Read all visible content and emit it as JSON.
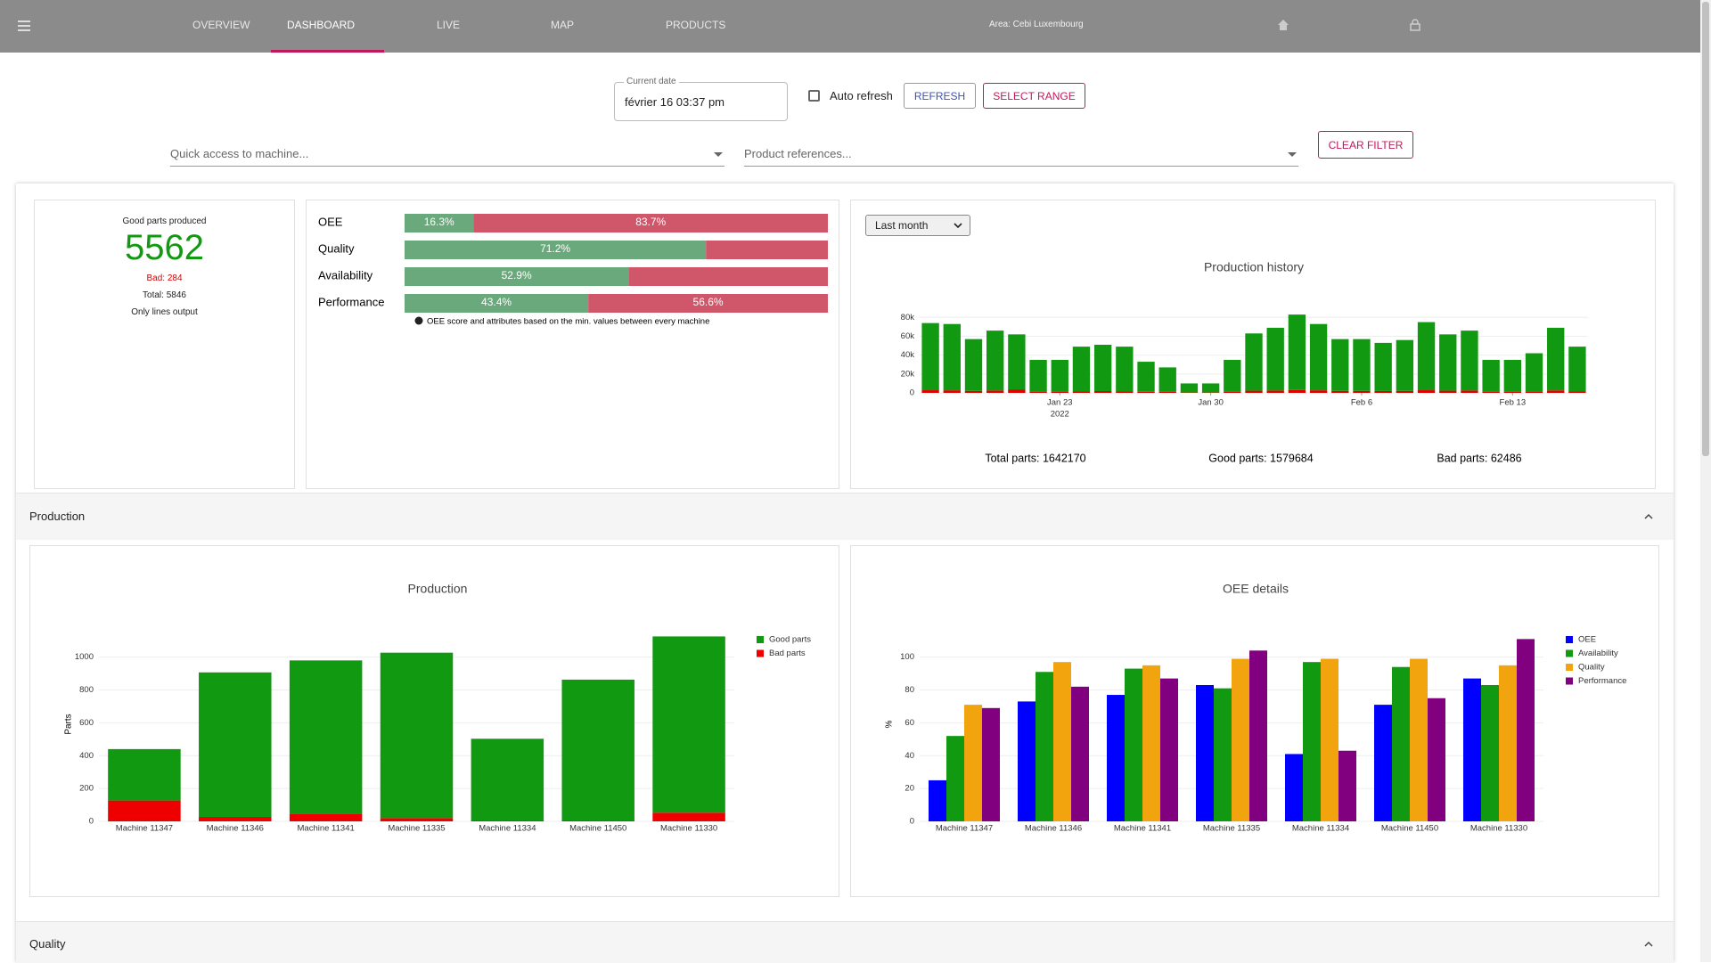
{
  "nav": {
    "items": [
      "OVERVIEW",
      "DASHBOARD",
      "LIVE",
      "MAP",
      "PRODUCTS"
    ],
    "area": "Area: Cebi Luxembourg"
  },
  "controls": {
    "date_label": "Current date",
    "date_value": "février 16 03:37 pm",
    "auto_refresh": "Auto refresh",
    "refresh": "REFRESH",
    "select_range": "SELECT RANGE",
    "machine_placeholder": "Quick access to machine...",
    "product_placeholder": "Product references...",
    "clear_filter": "CLEAR FILTER"
  },
  "kpi": {
    "title": "Good parts produced",
    "good": "5562",
    "bad": "Bad: 284",
    "total": "Total: 5846",
    "note": "Only lines output"
  },
  "oee_summary": {
    "good_color": "#6aa97b",
    "bad_color": "#d0566a",
    "note": "OEE score and attributes based on the min. values between every machine",
    "rows": [
      {
        "name": "OEE",
        "good": 16.3,
        "bad": 83.7,
        "good_label": "16.3%",
        "bad_label": "83.7%"
      },
      {
        "name": "Quality",
        "good": 71.2,
        "bad": 28.8,
        "good_label": "71.2%"
      },
      {
        "name": "Availability",
        "good": 52.9,
        "bad": 47.1,
        "good_label": "52.9%"
      },
      {
        "name": "Performance",
        "good": 43.4,
        "bad": 56.6,
        "good_label": "43.4%",
        "bad_label": "56.6%"
      }
    ]
  },
  "history": {
    "type": "bar",
    "barmode": "stack",
    "range_select": "Last month",
    "title": "Production history",
    "x": [
      "2022-01-17",
      "2022-01-18",
      "2022-01-19",
      "2022-01-20",
      "2022-01-21",
      "2022-01-22",
      "2022-01-23",
      "2022-01-24",
      "2022-01-25",
      "2022-01-26",
      "2022-01-27",
      "2022-01-28",
      "2022-01-29",
      "2022-01-30",
      "2022-01-31",
      "2022-02-01",
      "2022-02-02",
      "2022-02-03",
      "2022-02-04",
      "2022-02-05",
      "2022-02-06",
      "2022-02-07",
      "2022-02-08",
      "2022-02-09",
      "2022-02-10",
      "2022-02-11",
      "2022-02-12",
      "2022-02-13",
      "2022-02-14",
      "2022-02-15",
      "2022-02-16"
    ],
    "series": [
      {
        "color": "#e00000",
        "values": [
          2800,
          2700,
          2100,
          2500,
          3300,
          1300,
          1300,
          1800,
          1900,
          1800,
          1200,
          1000,
          400,
          400,
          1300,
          2300,
          2500,
          3000,
          2700,
          2100,
          2100,
          2000,
          2100,
          2800,
          2300,
          2500,
          1300,
          1300,
          1600,
          2600,
          1800
        ]
      },
      {
        "color": "#119a11",
        "values": [
          71200,
          70300,
          54900,
          63500,
          58700,
          33700,
          33700,
          47200,
          49100,
          47200,
          31800,
          26000,
          9600,
          9600,
          33700,
          60700,
          66500,
          80000,
          70300,
          54900,
          54900,
          51000,
          53900,
          72200,
          59700,
          63500,
          33700,
          33700,
          40400,
          66400,
          47200
        ]
      }
    ],
    "xlim": [
      "2022-01-16T12:00",
      "2022-02-16T12:00"
    ],
    "xticks": [
      {
        "value": "2022-01-23",
        "label": "Jan 23"
      },
      {
        "value": "2022-01-30",
        "label": "Jan 30"
      },
      {
        "value": "2022-02-06",
        "label": "Feb 6"
      },
      {
        "value": "2022-02-13",
        "label": "Feb 13"
      }
    ],
    "x_year": "2022",
    "ylim": [
      0,
      85000
    ],
    "yticks": [
      0,
      {
        "value": 20000,
        "label": "20k"
      },
      {
        "value": 40000,
        "label": "40k"
      },
      {
        "value": 60000,
        "label": "60k"
      },
      {
        "value": 80000,
        "label": "80k"
      }
    ],
    "grid": true,
    "totals": [
      "Total parts: 1642170",
      "Good parts: 1579684",
      "Bad parts: 62486"
    ]
  },
  "sections": [
    "Production",
    "Quality"
  ],
  "production_chart": {
    "type": "bar",
    "barmode": "stack",
    "title": "Production",
    "y_label": "Parts",
    "legend": "top-right",
    "legend_order": "reversed",
    "categories": [
      "Machine 11347",
      "Machine 11346",
      "Machine 11341",
      "Machine 11335",
      "Machine 11334",
      "Machine 11450",
      "Machine 11330"
    ],
    "series": [
      {
        "name": "Bad parts",
        "color": "#ee0000",
        "values": [
          127,
          27,
          47,
          20,
          5,
          5,
          53
        ]
      },
      {
        "name": "Good parts",
        "color": "#119a11",
        "values": [
          313,
          880,
          933,
          1007,
          498,
          858,
          1073
        ]
      }
    ],
    "ylim": [
      0,
      1150
    ],
    "yticks": [
      0,
      200,
      400,
      600,
      800,
      1000
    ],
    "grid": true
  },
  "oee_chart": {
    "type": "bar",
    "barmode": "group",
    "title": "OEE details",
    "y_label": "%",
    "legend": "top-right",
    "categories": [
      "Machine 11347",
      "Machine 11346",
      "Machine 11341",
      "Machine 11335",
      "Machine 11334",
      "Machine 11450",
      "Machine 11330"
    ],
    "series": [
      {
        "name": "OEE",
        "color": "#0000ff",
        "values": [
          25,
          73,
          77,
          83,
          41,
          71,
          87
        ]
      },
      {
        "name": "Availability",
        "color": "#119a11",
        "values": [
          52,
          91,
          93,
          81,
          97,
          94,
          83
        ]
      },
      {
        "name": "Quality",
        "color": "#f2a40e",
        "values": [
          71,
          97,
          95,
          99,
          99,
          99,
          95
        ]
      },
      {
        "name": "Performance",
        "color": "#800080",
        "values": [
          69,
          82,
          87,
          104,
          43,
          75,
          111
        ]
      }
    ],
    "ylim": [
      0,
      115
    ],
    "yticks": [
      0,
      20,
      40,
      60,
      80,
      100
    ],
    "grid": true
  }
}
